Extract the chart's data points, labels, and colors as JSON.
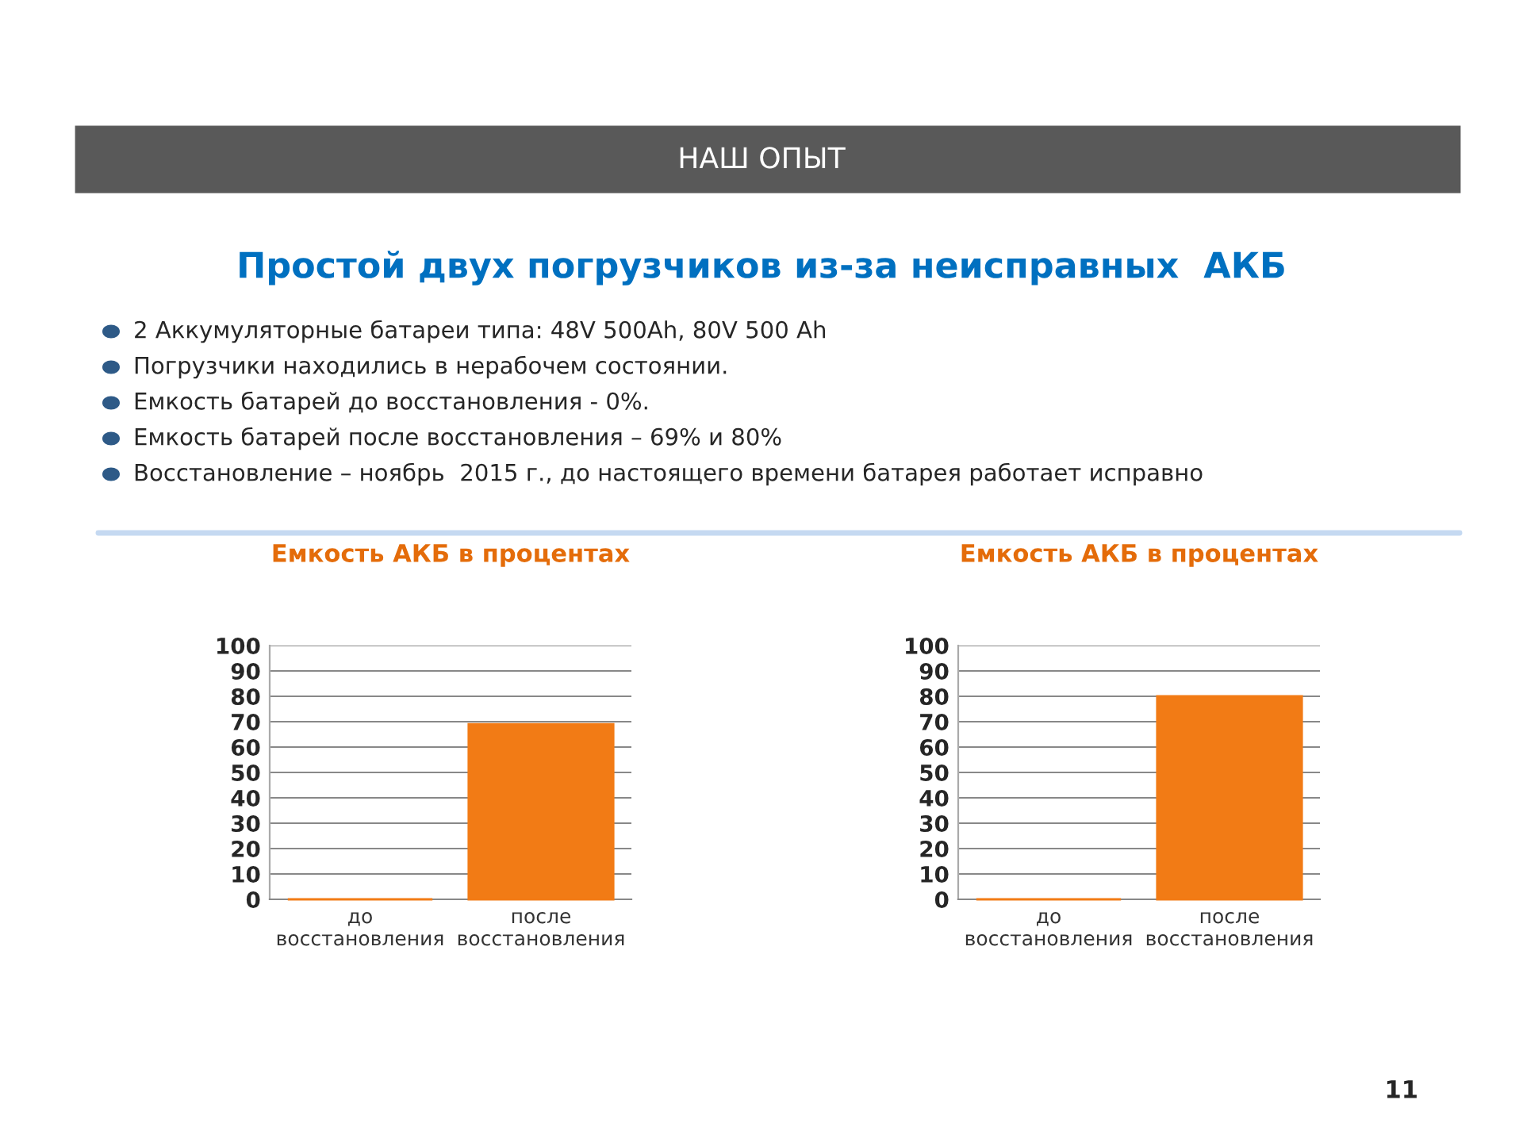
{
  "chart_data": [
    {
      "type": "bar",
      "title": "Емкость АКБ в процентах",
      "categories": [
        "до\nвосстановления",
        "после\nвосстановления"
      ],
      "values": [
        0,
        69
      ],
      "color": "#f27b15",
      "ylim": [
        0,
        100
      ],
      "yticks": [
        0,
        10,
        20,
        30,
        40,
        50,
        60,
        70,
        80,
        90,
        100
      ],
      "grid": "y",
      "legend": false,
      "annotations": [
        "НАШ ОПЫТ",
        "Простой двух погрузчиков из-за неисправных  АКБ",
        "2 Аккумуляторные батареи типа: 48V 500Ah, 80V 500 Ah",
        "Погрузчики находились в нерабочем состоянии.",
        "Емкость батарей до восстановления - 0%.",
        "Емкость батарей после восстановления – 69% и 80%",
        "Восстановление – ноябрь  2015 г., до настоящего времени батарея работает исправно",
        "11"
      ]
    },
    {
      "type": "bar",
      "title": "Емкость АКБ в процентах",
      "categories": [
        "до\nвосстановления",
        "после\nвосстановления"
      ],
      "values": [
        0,
        80
      ],
      "color": "#f27b15",
      "ylim": [
        0,
        100
      ],
      "yticks": [
        0,
        10,
        20,
        30,
        40,
        50,
        60,
        70,
        80,
        90,
        100
      ],
      "grid": "y",
      "legend": false
    }
  ]
}
